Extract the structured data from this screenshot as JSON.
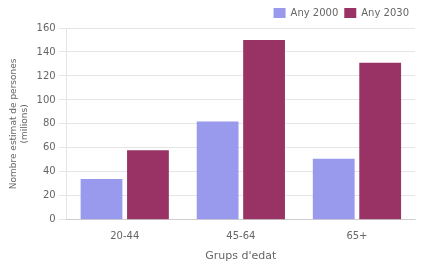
{
  "chart_data": {
    "type": "bar",
    "categories": [
      "20-44",
      "45-64",
      "65+"
    ],
    "series": [
      {
        "name": "Any 2000",
        "color": "#9999ee",
        "values": [
          34,
          82,
          51
        ]
      },
      {
        "name": "Any 2030",
        "color": "#993366",
        "values": [
          58,
          150,
          131
        ]
      }
    ],
    "xlabel": "Grups d'edat",
    "ylabel": "Nombre estimat de persones\n(milions)",
    "ylim": [
      0,
      160
    ],
    "yticks": [
      0,
      20,
      40,
      60,
      80,
      100,
      120,
      140,
      160
    ],
    "grid": true,
    "legend": "upper right"
  }
}
